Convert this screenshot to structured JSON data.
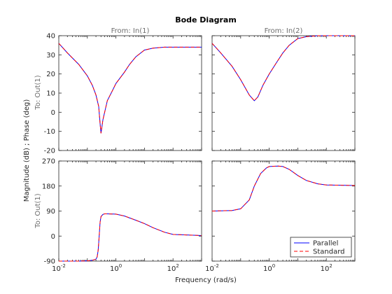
{
  "chart_data": {
    "type": "line",
    "title": "Bode Diagram",
    "xlabel": "Frequency  (rad/s)",
    "ylabel": "Magnitude (dB) ; Phase (deg)",
    "column_titles": [
      "From: In(1)",
      "From: In(2)"
    ],
    "row_labels": [
      "To: Out(1)",
      "To: Out(1)"
    ],
    "x_scale": "log",
    "xlim": [
      0.01,
      1000
    ],
    "x_ticks": [
      0.01,
      1,
      100
    ],
    "x_tick_labels": [
      {
        "base": "10",
        "exp": "-2"
      },
      {
        "base": "10",
        "exp": "0"
      },
      {
        "base": "10",
        "exp": "2"
      }
    ],
    "magnitude": {
      "ylim": [
        -20,
        40
      ],
      "y_ticks": [
        40,
        30,
        20,
        10,
        0,
        -10,
        -20
      ],
      "y_tick_labels": [
        "40",
        "30",
        "20",
        "10",
        "0",
        "-10",
        "-20"
      ]
    },
    "phase": {
      "ylim": [
        -90,
        270
      ],
      "y_ticks": [
        270,
        180,
        90,
        0,
        -90
      ],
      "y_tick_labels": [
        "270",
        "180",
        "90",
        "0",
        "-90"
      ]
    },
    "series": [
      {
        "name": "Parallel",
        "color": "#0000ff",
        "style": "solid"
      },
      {
        "name": "Standard",
        "color": "#ff0000",
        "style": "dashed"
      }
    ],
    "legend": {
      "location": "bottom-right",
      "entries": [
        "Parallel",
        "Standard"
      ]
    },
    "curves": {
      "mag_in1": {
        "x": [
          0.01,
          0.02,
          0.05,
          0.1,
          0.15,
          0.2,
          0.25,
          0.28,
          0.3,
          0.35,
          0.5,
          0.8,
          1,
          2,
          3,
          5,
          10,
          20,
          50,
          100,
          1000
        ],
        "y": [
          36,
          31,
          25,
          19,
          14,
          9,
          3,
          -6,
          -11,
          -4,
          6,
          12,
          15,
          21,
          25,
          29,
          32.5,
          33.5,
          34,
          34,
          34
        ]
      },
      "mag_in2": {
        "x": [
          0.01,
          0.02,
          0.05,
          0.1,
          0.2,
          0.3,
          0.4,
          0.6,
          1,
          2,
          3,
          5,
          10,
          20,
          50,
          100,
          1000
        ],
        "y": [
          36,
          31,
          24,
          17,
          9,
          6,
          8,
          14,
          20,
          27,
          31,
          35,
          38.5,
          39.5,
          40,
          40,
          40
        ]
      },
      "phase_in1": {
        "x": [
          0.01,
          0.05,
          0.1,
          0.15,
          0.2,
          0.22,
          0.24,
          0.26,
          0.28,
          0.3,
          0.35,
          0.4,
          0.5,
          1,
          2,
          5,
          10,
          20,
          50,
          100,
          1000
        ],
        "y": [
          -90,
          -90,
          -89,
          -87,
          -83,
          -75,
          -50,
          0,
          50,
          70,
          78,
          80,
          80,
          79,
          72,
          57,
          45,
          30,
          14,
          6,
          2
        ]
      },
      "phase_in2": {
        "x": [
          0.01,
          0.05,
          0.1,
          0.2,
          0.3,
          0.5,
          0.8,
          1,
          2,
          3,
          5,
          10,
          20,
          50,
          100,
          1000
        ],
        "y": [
          90,
          92,
          98,
          130,
          180,
          225,
          245,
          250,
          252,
          250,
          240,
          218,
          200,
          188,
          184,
          182
        ]
      }
    }
  }
}
